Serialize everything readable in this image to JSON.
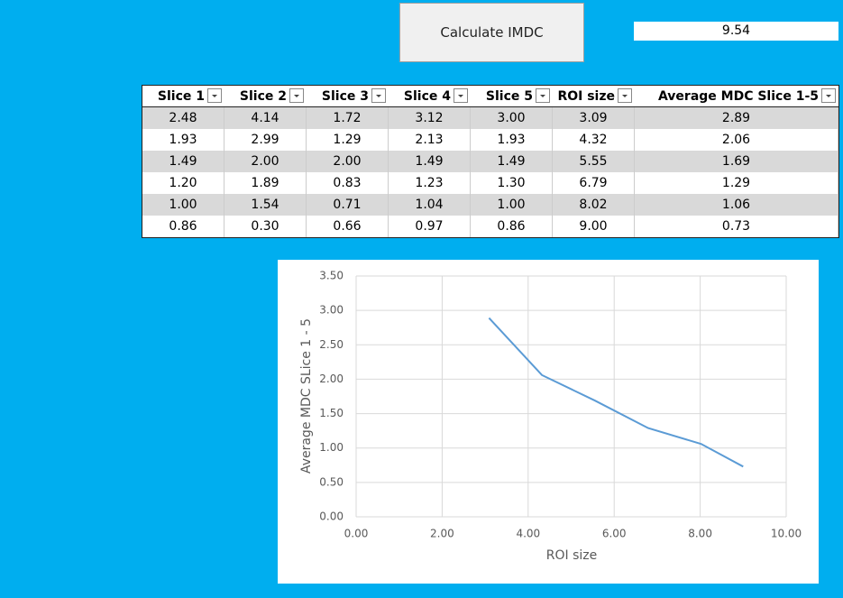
{
  "button": {
    "label": "Calculate IMDC"
  },
  "result": {
    "value": "9.54"
  },
  "table": {
    "headers": [
      "Slice 1",
      "Slice 2",
      "Slice 3",
      "Slice 4",
      "Slice 5",
      "ROI size",
      "Average MDC Slice 1-5"
    ],
    "rows": [
      [
        "2.48",
        "4.14",
        "1.72",
        "3.12",
        "3.00",
        "3.09",
        "2.89"
      ],
      [
        "1.93",
        "2.99",
        "1.29",
        "2.13",
        "1.93",
        "4.32",
        "2.06"
      ],
      [
        "1.49",
        "2.00",
        "2.00",
        "1.49",
        "1.49",
        "5.55",
        "1.69"
      ],
      [
        "1.20",
        "1.89",
        "0.83",
        "1.23",
        "1.30",
        "6.79",
        "1.29"
      ],
      [
        "1.00",
        "1.54",
        "0.71",
        "1.04",
        "1.00",
        "8.02",
        "1.06"
      ],
      [
        "0.86",
        "0.30",
        "0.66",
        "0.97",
        "0.86",
        "9.00",
        "0.73"
      ]
    ]
  },
  "chart_data": {
    "type": "line",
    "x_label": "ROI size",
    "y_label": "Average MDC SLice 1 - 5",
    "x": [
      3.09,
      4.32,
      5.55,
      6.79,
      8.02,
      9.0
    ],
    "values": [
      2.89,
      2.06,
      1.69,
      1.29,
      1.06,
      0.73
    ],
    "color": "#5b9bd5",
    "xlim": [
      0,
      10
    ],
    "xticks": [
      {
        "value": 0,
        "label": "0.00"
      },
      {
        "value": 2,
        "label": "2.00"
      },
      {
        "value": 4,
        "label": "4.00"
      },
      {
        "value": 6,
        "label": "6.00"
      },
      {
        "value": 8,
        "label": "8.00"
      },
      {
        "value": 10,
        "label": "10.00"
      }
    ],
    "ylim": [
      0,
      3.5
    ],
    "yticks": [
      {
        "value": 0,
        "label": "0.00"
      },
      {
        "value": 0.5,
        "label": "0.50"
      },
      {
        "value": 1,
        "label": "1.00"
      },
      {
        "value": 1.5,
        "label": "1.50"
      },
      {
        "value": 2,
        "label": "2.00"
      },
      {
        "value": 2.5,
        "label": "2.50"
      },
      {
        "value": 3,
        "label": "3.00"
      },
      {
        "value": 3.5,
        "label": "3.50"
      }
    ],
    "grid": true
  }
}
